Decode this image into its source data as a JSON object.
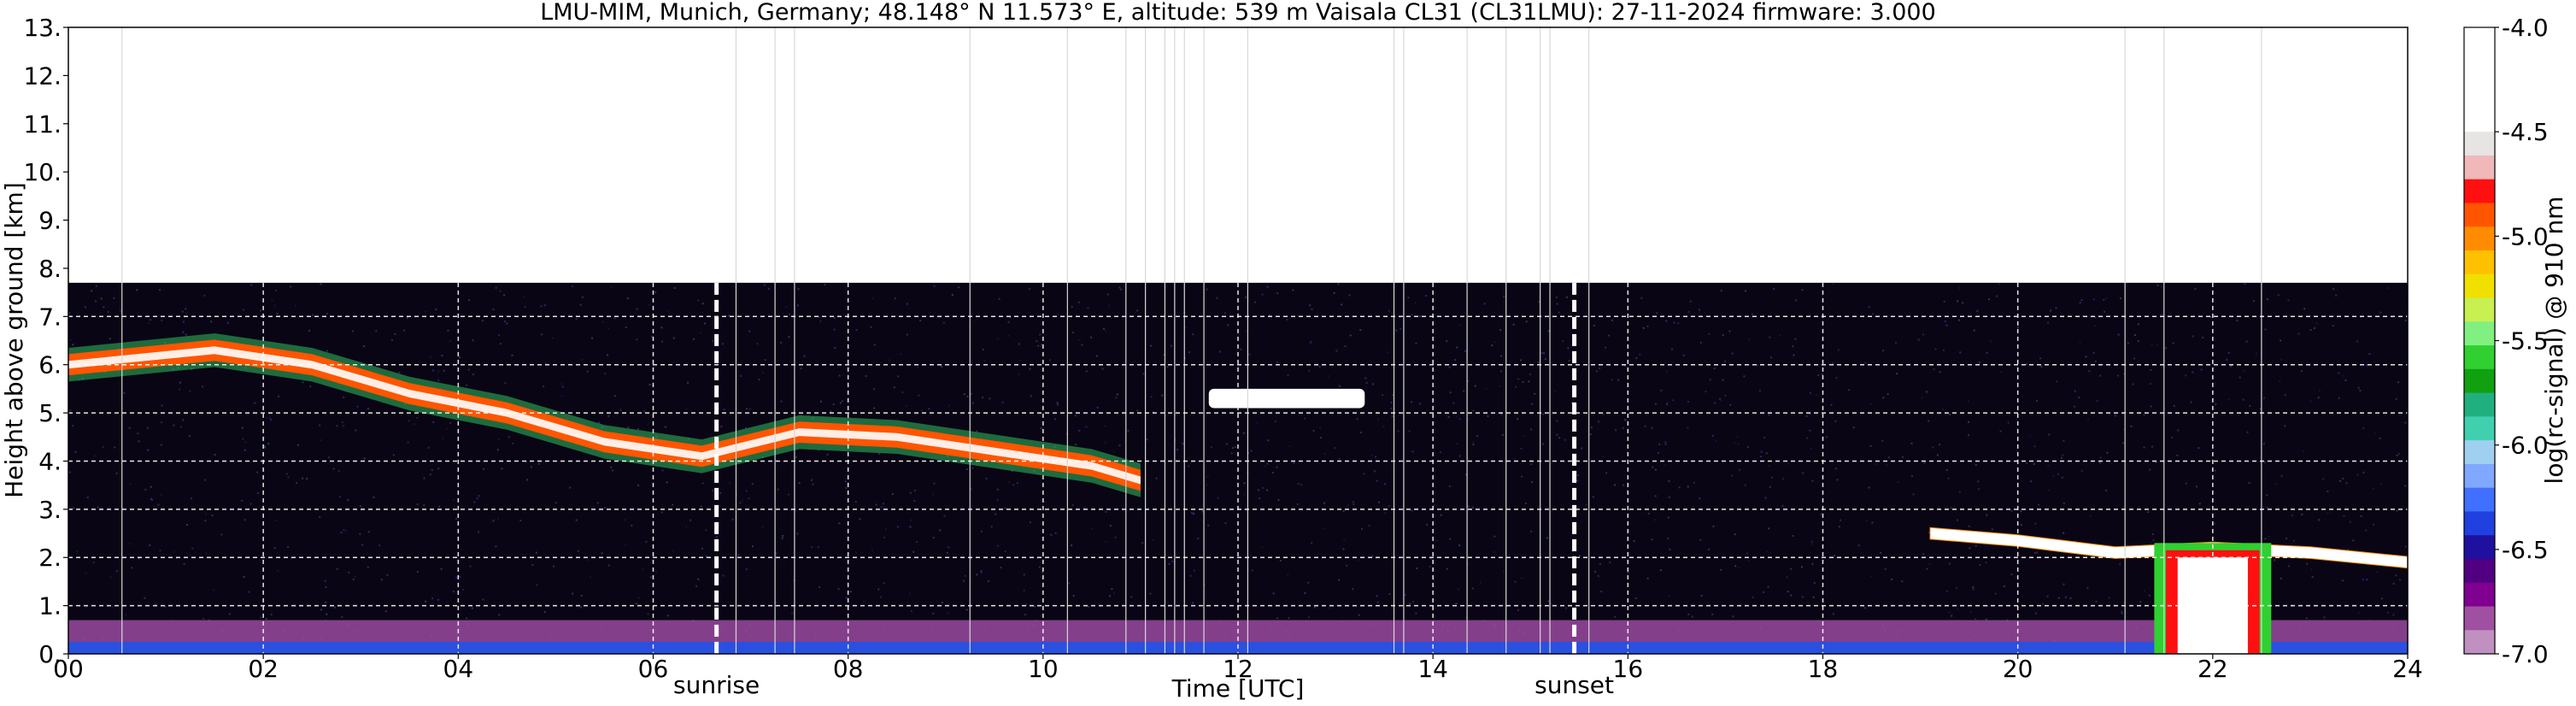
{
  "chart_data": {
    "type": "heatmap",
    "title": "LMU-MIM, Munich, Germany; 48.148° N 11.573° E, altitude: 539 m    Vaisala CL31 (CL31LMU): 27-11-2024    firmware: 3.000",
    "xlabel": "Time [UTC]",
    "ylabel": "Height above ground [km]",
    "xlim": [
      0,
      24
    ],
    "ylim": [
      0,
      13
    ],
    "x_ticks": [
      "00",
      "02",
      "04",
      "06",
      "08",
      "10",
      "12",
      "14",
      "16",
      "18",
      "20",
      "22",
      "24"
    ],
    "y_ticks": [
      "0.",
      "1.",
      "2.",
      "3.",
      "4.",
      "5.",
      "6.",
      "7.",
      "8.",
      "9.",
      "10.",
      "11.",
      "12.",
      "13."
    ],
    "grid": true,
    "data_top_km": 7.7,
    "annotations": [
      {
        "label": "sunrise",
        "time_utc": 6.65
      },
      {
        "label": "sunset",
        "time_utc": 15.45
      }
    ],
    "colorbar": {
      "label": "log(rc-signal) @ 910 nm",
      "range": [
        -7.0,
        -4.0
      ],
      "ticks": [
        "-4.0",
        "-4.5",
        "-5.0",
        "-5.5",
        "-6.0",
        "-6.5",
        "-7.0"
      ],
      "colors": [
        "#ffffff",
        "#e8e4e4",
        "#f0b8b8",
        "#ff1010",
        "#ff5500",
        "#ff8c00",
        "#ffc000",
        "#f0e000",
        "#c8f050",
        "#80f080",
        "#30d030",
        "#10a010",
        "#20b080",
        "#40d0b0",
        "#a0d0f0",
        "#80a8ff",
        "#4070ff",
        "#2040e0",
        "#2010a0",
        "#500080",
        "#800090",
        "#a050a0",
        "#c090c0"
      ]
    },
    "features": [
      {
        "name": "aerosol layer",
        "time_range": [
          0,
          24
        ],
        "height_km": [
          0,
          0.7
        ]
      },
      {
        "name": "descending cloud layer",
        "points": [
          [
            0.0,
            6.0
          ],
          [
            1.5,
            6.3
          ],
          [
            2.5,
            6.0
          ],
          [
            3.5,
            5.4
          ],
          [
            4.5,
            5.0
          ],
          [
            5.5,
            4.4
          ],
          [
            6.5,
            4.1
          ],
          [
            7.5,
            4.6
          ],
          [
            8.5,
            4.5
          ],
          [
            9.5,
            4.2
          ],
          [
            10.5,
            3.9
          ],
          [
            11.0,
            3.6
          ]
        ]
      },
      {
        "name": "cloud 12-13 UTC",
        "time_range": [
          11.7,
          13.3
        ],
        "height_km": [
          5.1,
          5.5
        ]
      },
      {
        "name": "low cloud 19-24 UTC",
        "points": [
          [
            19.1,
            2.5
          ],
          [
            20.0,
            2.35
          ],
          [
            21.0,
            2.1
          ],
          [
            22.0,
            2.2
          ],
          [
            23.0,
            2.1
          ],
          [
            24.0,
            1.9
          ]
        ]
      },
      {
        "name": "precipitation",
        "time_range": [
          21.4,
          22.6
        ],
        "height_km": [
          0,
          2.3
        ]
      }
    ]
  }
}
